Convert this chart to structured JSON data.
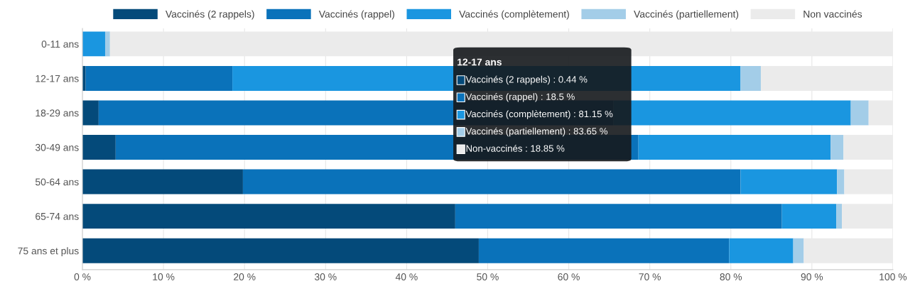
{
  "chart_data": {
    "type": "bar",
    "orientation": "horizontal",
    "stacked": true,
    "categories": [
      "0-11 ans",
      "12-17 ans",
      "18-29 ans",
      "30-49 ans",
      "50-64 ans",
      "65-74 ans",
      "75 ans et plus"
    ],
    "series": [
      {
        "name": "Vaccinés (2 rappels)",
        "color": "#044a7a",
        "values": [
          0,
          0.4,
          2.0,
          4.1,
          19.8,
          46.0,
          48.9
        ]
      },
      {
        "name": "Vaccinés (rappel)",
        "color": "#0a72ba",
        "values": [
          0,
          18.1,
          63.5,
          64.5,
          61.4,
          40.3,
          30.9
        ]
      },
      {
        "name": "Vaccinés (complètement)",
        "color": "#1a96e0",
        "values": [
          2.8,
          62.7,
          29.3,
          23.7,
          11.9,
          6.7,
          7.9
        ]
      },
      {
        "name": "Vaccinés (partiellement)",
        "color": "#a3cde8",
        "values": [
          0.6,
          2.5,
          2.2,
          1.6,
          0.9,
          0.7,
          1.3
        ]
      },
      {
        "name": "Non vaccinés",
        "color": "#ebebeb",
        "values": [
          96.6,
          16.3,
          3.0,
          6.1,
          6.0,
          6.3,
          11.0
        ]
      }
    ],
    "xlim": [
      0,
      100
    ],
    "xticks": [
      {
        "value": 0,
        "label": "0 %"
      },
      {
        "value": 10,
        "label": "10 %"
      },
      {
        "value": 20,
        "label": "20 %"
      },
      {
        "value": 30,
        "label": "30 %"
      },
      {
        "value": 40,
        "label": "40 %"
      },
      {
        "value": 50,
        "label": "50 %"
      },
      {
        "value": 60,
        "label": "60 %"
      },
      {
        "value": 70,
        "label": "70 %"
      },
      {
        "value": 80,
        "label": "80 %"
      },
      {
        "value": 90,
        "label": "90 %"
      },
      {
        "value": 100,
        "label": "100 %"
      }
    ],
    "grid": "x",
    "legend": "top",
    "annotations": [
      "12-17 ans",
      "Vaccinés (2 rappels) : 0.44 %",
      "Vaccinés (rappel) : 18.5 %",
      "Vaccinés (complètement) : 81.15 %",
      "Vaccinés (partiellement) : 83.65 %",
      "Non-vaccinés : 18.85 %"
    ]
  }
}
